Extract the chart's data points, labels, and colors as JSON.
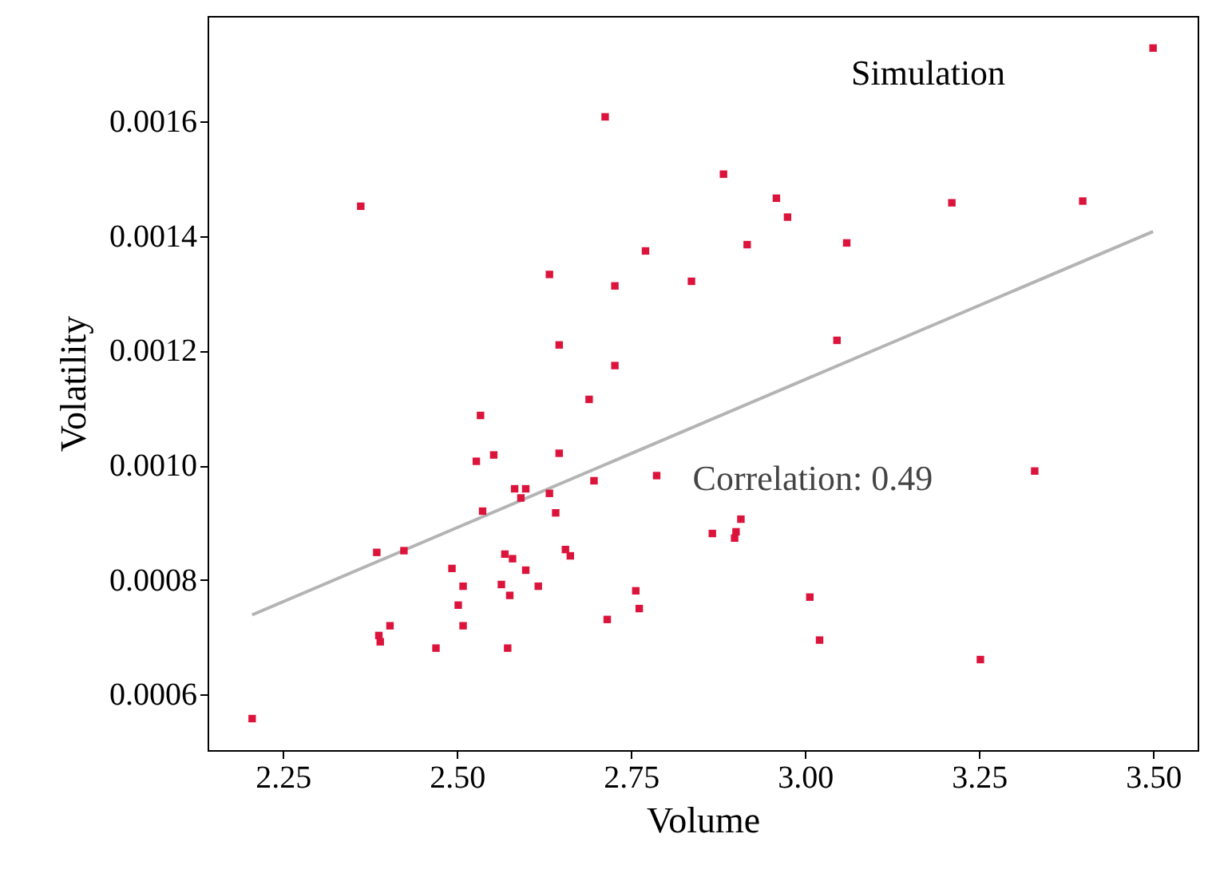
{
  "chart_data": {
    "type": "scatter",
    "xlabel": "Volume",
    "ylabel": "Volatility",
    "annotations": [
      "Simulation",
      "Correlation: 0.49"
    ],
    "xlim": [
      2.142,
      3.564
    ],
    "ylim": [
      0.000503,
      0.001784
    ],
    "xticks": [
      2.25,
      {
        "value": 2.5,
        "label": "2.50"
      },
      2.75,
      {
        "value": 3.0,
        "label": "3.00"
      },
      3.25,
      {
        "value": 3.5,
        "label": "3.50"
      }
    ],
    "yticks": [
      0.0006,
      0.0008,
      {
        "value": 0.001,
        "label": "0.0010"
      },
      0.0012,
      0.0014,
      0.0016
    ],
    "grid": false,
    "series": [
      {
        "marker": "square",
        "color": "#dc143c",
        "x": [
          2.206,
          2.362,
          2.713,
          3.5,
          2.883,
          2.959,
          2.975,
          2.917,
          3.06,
          3.211,
          3.399,
          3.046,
          2.771,
          2.633,
          2.727,
          2.837,
          2.647,
          2.727,
          2.69,
          2.534,
          2.553,
          2.528,
          2.647,
          2.697,
          2.787,
          2.583,
          2.599,
          2.592,
          2.633,
          2.537,
          2.642,
          2.385,
          2.424,
          2.656,
          2.663,
          2.569,
          2.58,
          2.493,
          2.599,
          2.509,
          2.564,
          2.617,
          2.576,
          2.502,
          2.757,
          2.762,
          2.716,
          2.509,
          2.404,
          2.388,
          2.39,
          2.47,
          2.573,
          3.33,
          2.867,
          2.908,
          2.901,
          2.899,
          3.007,
          3.021,
          3.252
        ],
        "values": [
          0.000558,
          0.001452,
          0.001608,
          0.001728,
          0.001508,
          0.001466,
          0.001433,
          0.001385,
          0.001388,
          0.001458,
          0.001461,
          0.001218,
          0.001374,
          0.001333,
          0.001313,
          0.001321,
          0.00121,
          0.001174,
          0.001115,
          0.001087,
          0.001018,
          0.001007,
          0.001021,
          0.000973,
          0.000982,
          0.000959,
          0.000959,
          0.000943,
          0.000951,
          0.00092,
          0.000917,
          0.000848,
          0.000851,
          0.000853,
          0.000842,
          0.000845,
          0.000837,
          0.00082,
          0.000817,
          0.000789,
          0.000792,
          0.000789,
          0.000773,
          0.000756,
          0.000781,
          0.00075,
          0.000731,
          0.00072,
          0.00072,
          0.000703,
          0.000692,
          0.000681,
          0.000681,
          0.00099,
          0.000881,
          0.000906,
          0.000884,
          0.000873,
          0.00077,
          0.000695,
          0.000661
        ]
      },
      {
        "type": "line",
        "color": "#b4b4b4",
        "x": [
          2.206,
          3.5
        ],
        "values": [
          0.000739,
          0.001408
        ]
      }
    ]
  }
}
